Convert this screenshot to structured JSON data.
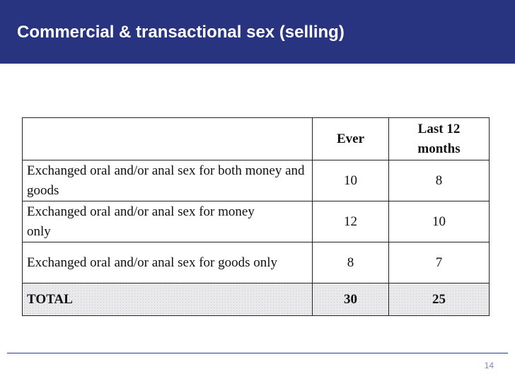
{
  "slide": {
    "title": "Commercial & transactional sex (selling)",
    "page_number": "14"
  },
  "table": {
    "headers": [
      "",
      "Ever",
      "Last 12 months"
    ],
    "rows": [
      {
        "label": "Exchanged oral and/or anal sex for both money and goods",
        "ever": "10",
        "last12": "8"
      },
      {
        "label": "Exchanged oral and/or anal sex for money only",
        "ever": "12",
        "last12": "10"
      },
      {
        "label": "Exchanged oral and/or anal sex for goods only",
        "ever": "8",
        "last12": "7"
      }
    ],
    "total": {
      "label": "TOTAL",
      "ever": "30",
      "last12": "25"
    }
  },
  "colors": {
    "title_bar": "#283480",
    "title_text": "#ffffff",
    "total_row_fill": "#e9e9ec",
    "footer_line": "#2b3b8c"
  }
}
